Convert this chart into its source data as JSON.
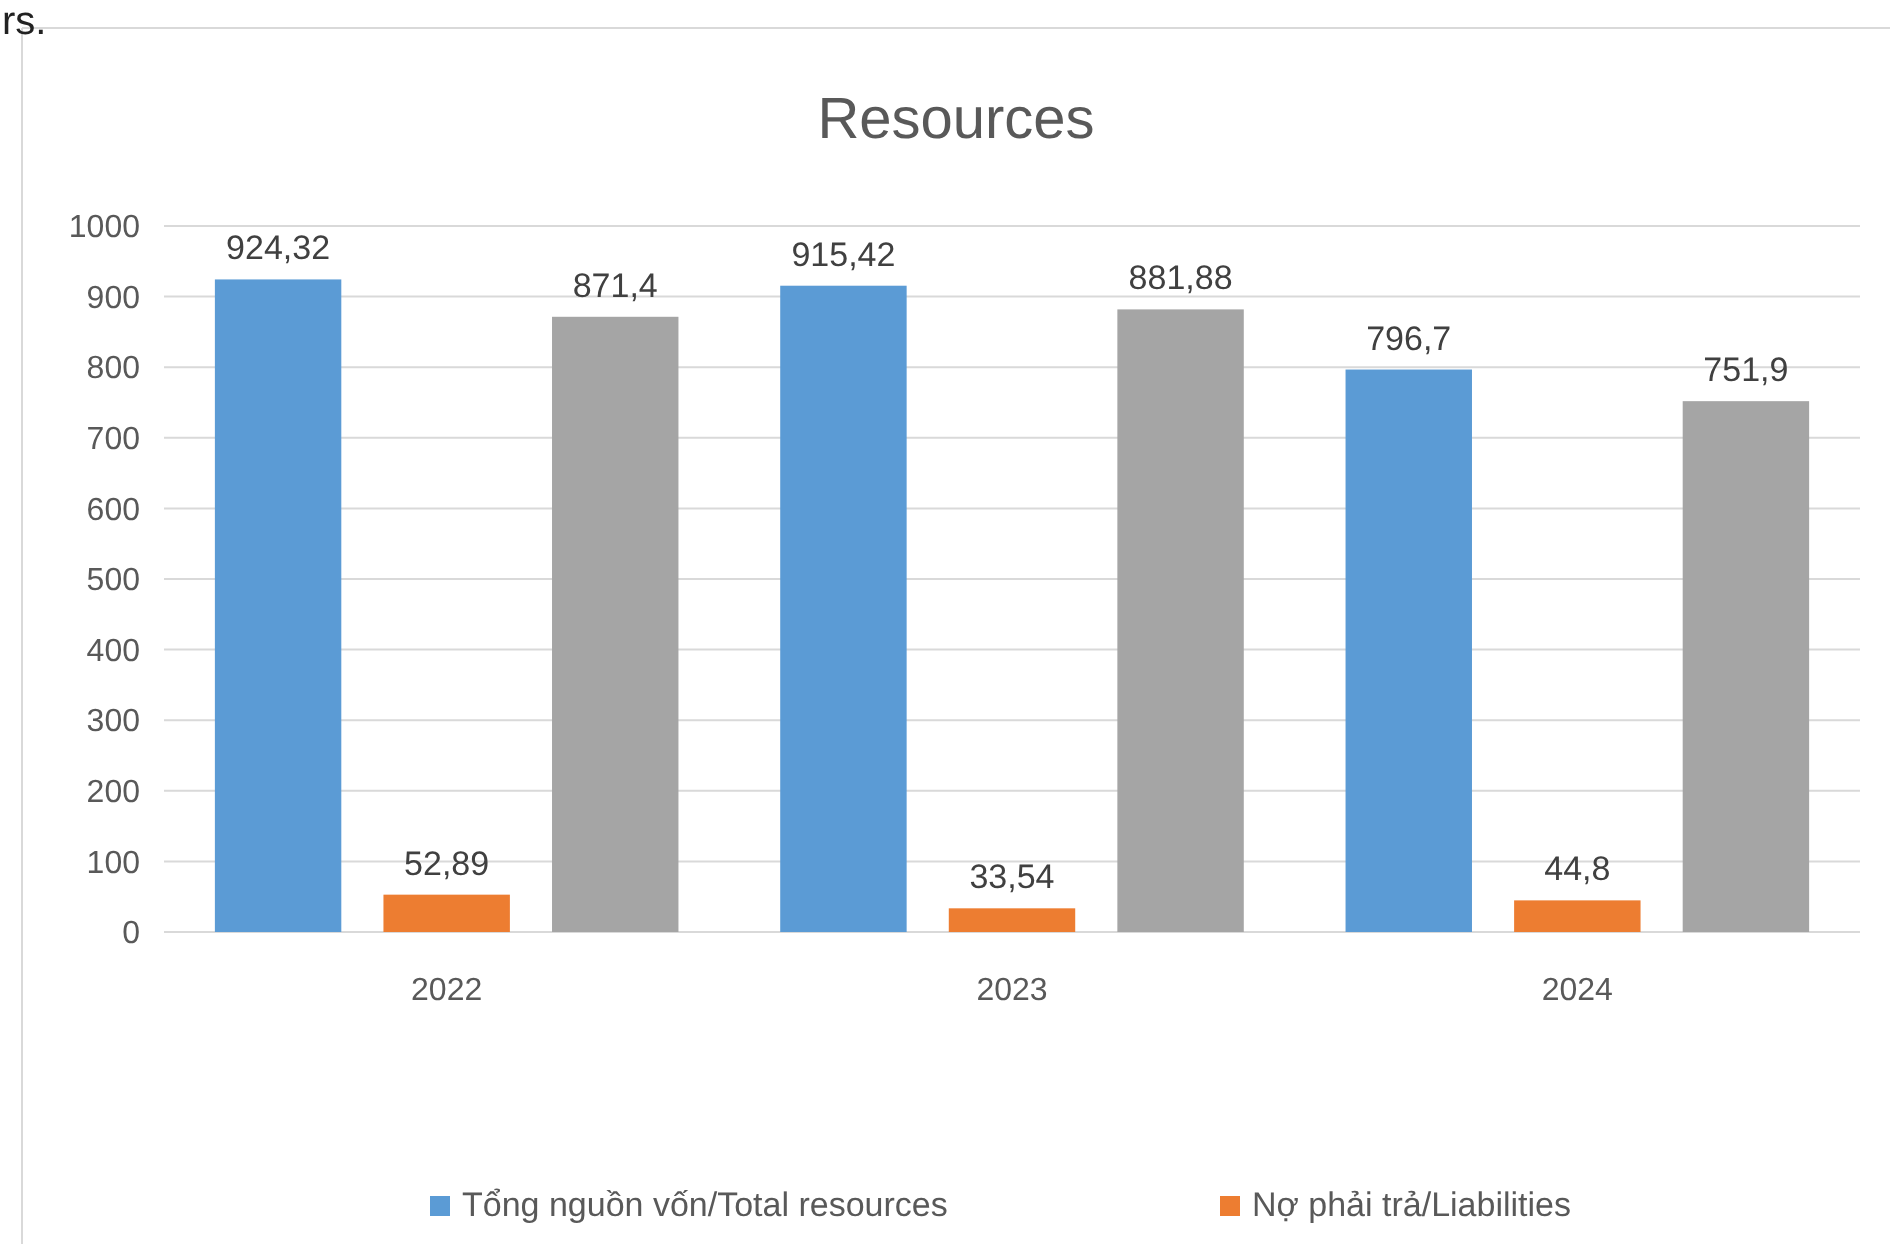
{
  "chart_data": {
    "type": "bar",
    "title": "Resources",
    "annotations": [
      "rs."
    ],
    "categories": [
      "2022",
      "2023",
      "2024"
    ],
    "series": [
      {
        "name": "Tổng nguồn vốn/Total resources",
        "color": "#5b9bd5",
        "values": [
          924.32,
          915.42,
          796.7
        ],
        "value_labels": [
          "924,32",
          "915,42",
          "796,7"
        ]
      },
      {
        "name": "Nợ phải trả/Liabilities",
        "color": "#ed7d31",
        "values": [
          52.89,
          33.54,
          44.8
        ],
        "value_labels": [
          "52,89",
          "33,54",
          "44,8"
        ]
      },
      {
        "color": "#a5a5a5",
        "values": [
          871.4,
          881.88,
          751.9
        ],
        "value_labels": [
          "871,4",
          "881,88",
          "751,9"
        ]
      }
    ],
    "ylim": [
      0,
      1000
    ],
    "yticks": [
      0,
      100,
      200,
      300,
      400,
      500,
      600,
      700,
      800,
      900,
      1000
    ],
    "grid": "y",
    "legend": "bottom"
  }
}
